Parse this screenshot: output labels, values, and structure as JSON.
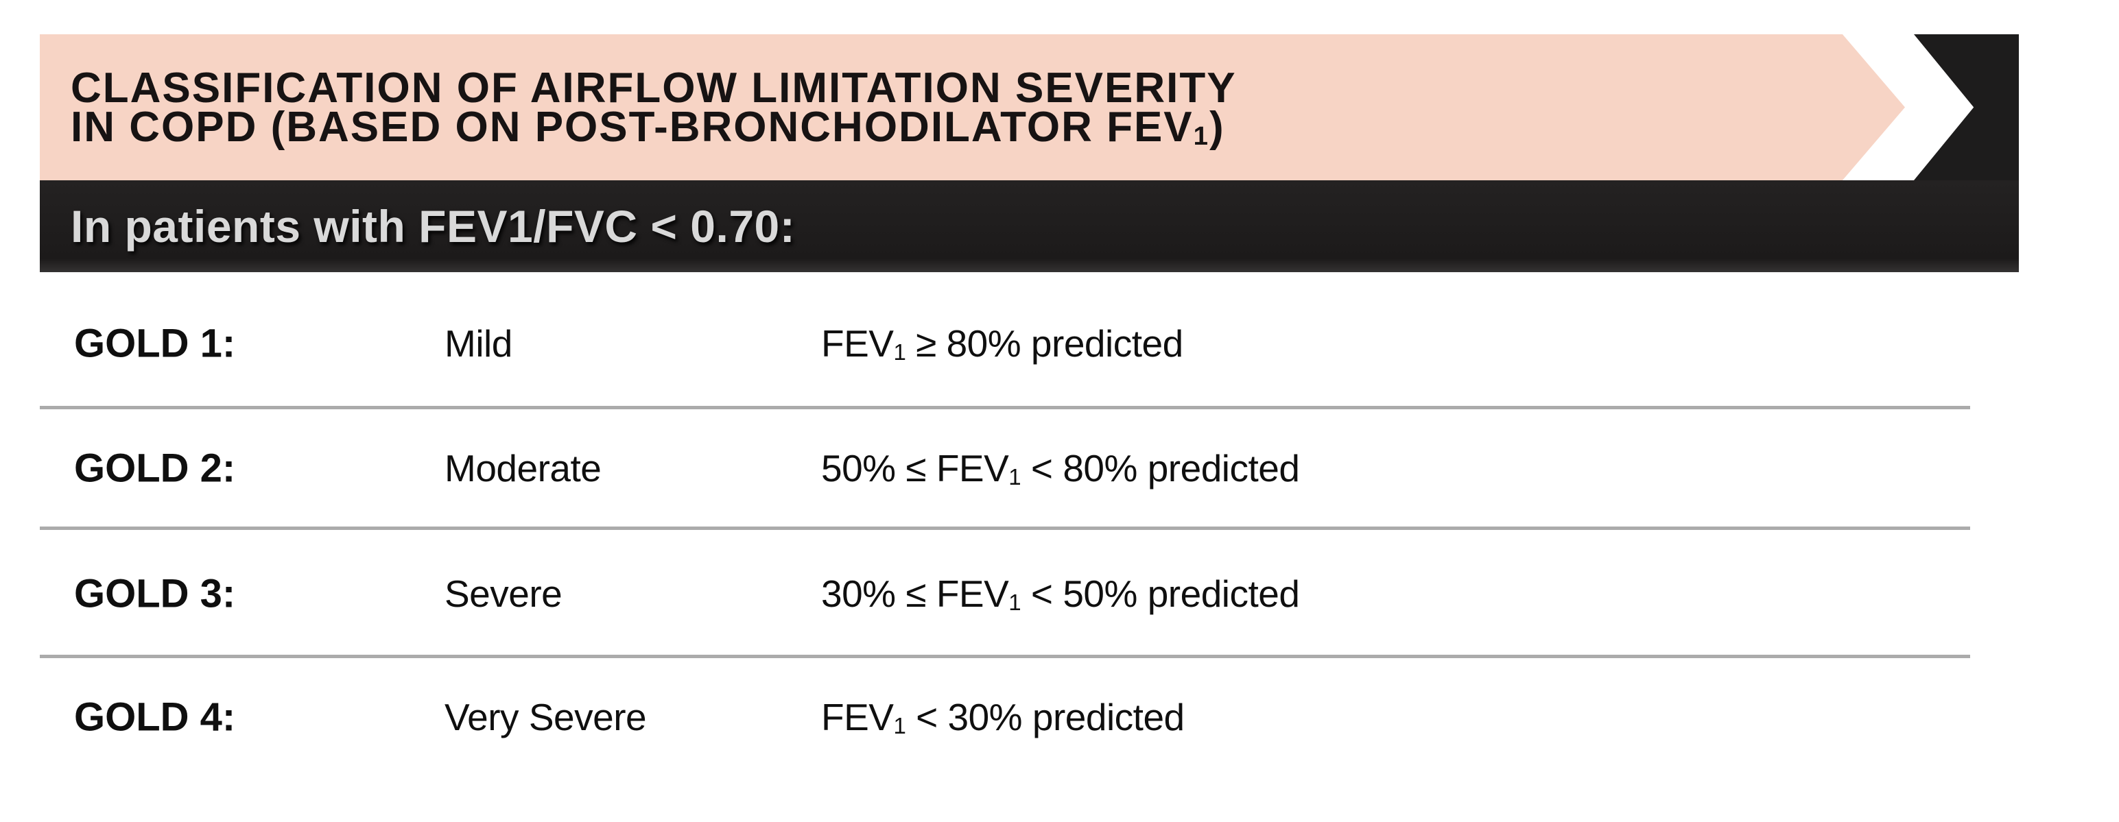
{
  "banner": {
    "title_line1": "CLASSIFICATION OF AIRFLOW LIMITATION SEVERITY",
    "title_line2_pre": "IN COPD (BASED ON POST-BRONCHODILATOR FEV",
    "title_line2_sub": "1",
    "title_line2_post": ")"
  },
  "subheader": {
    "text": "In patients with FEV1/FVC < 0.70:"
  },
  "table": {
    "rows": [
      {
        "grade": "GOLD 1:",
        "severity": "Mild",
        "criteria_pre": "FEV",
        "criteria_sub": "1",
        "criteria_post": " ≥ 80% predicted"
      },
      {
        "grade": "GOLD 2:",
        "severity": "Moderate",
        "criteria_pre": "50% ≤ FEV",
        "criteria_sub": "1",
        "criteria_post": " < 80% predicted"
      },
      {
        "grade": "GOLD 3:",
        "severity": "Severe",
        "criteria_pre": "30% ≤ FEV",
        "criteria_sub": "1",
        "criteria_post": " < 50% predicted"
      },
      {
        "grade": "GOLD 4:",
        "severity": "Very Severe",
        "criteria_pre": "FEV",
        "criteria_sub": "1",
        "criteria_post": " < 30% predicted"
      }
    ]
  },
  "colors": {
    "banner_pink": "#f7d4c5",
    "bar_black": "#1d1c1c",
    "divider_gray": "#ababab",
    "body_text": "#0f0f0f",
    "subheader_text": "#d9d9d9"
  }
}
